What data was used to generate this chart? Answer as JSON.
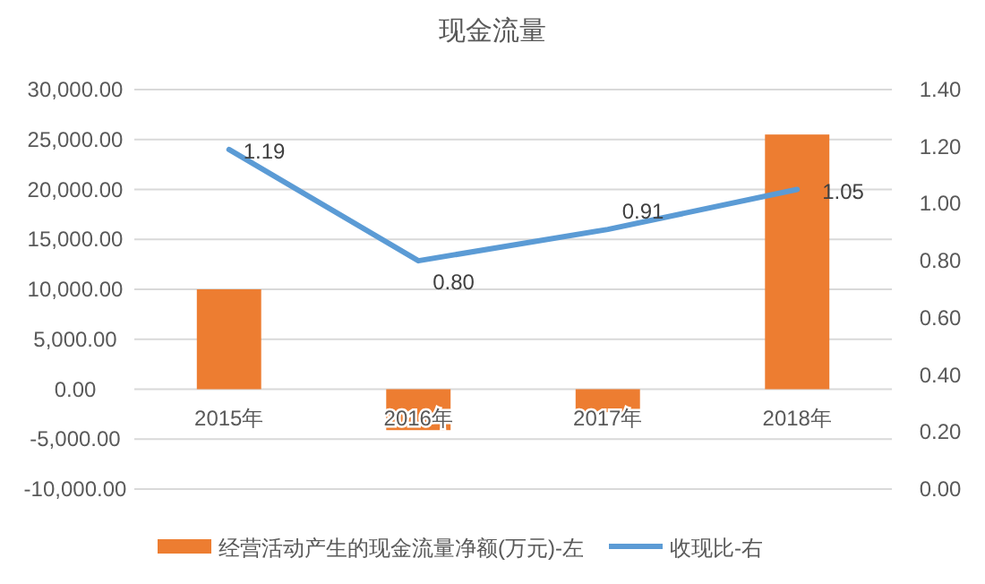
{
  "chart_data": {
    "type": "bar",
    "title": "现金流量",
    "categories": [
      "2015年",
      "2016年",
      "2017年",
      "2018年"
    ],
    "series": [
      {
        "name": "经营活动产生的现金流量净额(万元)-左",
        "color": "#ed7d31",
        "values": [
          10000,
          -4100,
          -2300,
          25500
        ]
      },
      {
        "name": "收现比-右",
        "type": "line",
        "axis": "y2",
        "color": "#5b9bd5",
        "values": [
          1.19,
          0.8,
          0.91,
          1.05
        ],
        "value_labels": [
          "1.19",
          "0.80",
          "0.91",
          "1.05"
        ]
      }
    ],
    "ylim": [
      -10000,
      30000
    ],
    "yticks": [
      {
        "value": -10000,
        "label": "-10,000.00"
      },
      {
        "value": -5000,
        "label": "-5,000.00"
      },
      {
        "value": 0,
        "label": "0.00"
      },
      {
        "value": 5000,
        "label": "5,000.00"
      },
      {
        "value": 10000,
        "label": "10,000.00"
      },
      {
        "value": 15000,
        "label": "15,000.00"
      },
      {
        "value": 20000,
        "label": "20,000.00"
      },
      {
        "value": 25000,
        "label": "25,000.00"
      },
      {
        "value": 30000,
        "label": "30,000.00"
      }
    ],
    "y2lim": [
      0,
      1.4
    ],
    "y2ticks": [
      {
        "value": 0,
        "label": "0.00"
      },
      {
        "value": 0.2,
        "label": "0.20"
      },
      {
        "value": 0.4,
        "label": "0.40"
      },
      {
        "value": 0.6,
        "label": "0.60"
      },
      {
        "value": 0.8,
        "label": "0.80"
      },
      {
        "value": 1.0,
        "label": "1.00"
      },
      {
        "value": 1.2,
        "label": "1.20"
      },
      {
        "value": 1.4,
        "label": "1.40"
      }
    ],
    "grid": "y",
    "legend": "bottom",
    "marker": "none",
    "line_style": "solid"
  }
}
